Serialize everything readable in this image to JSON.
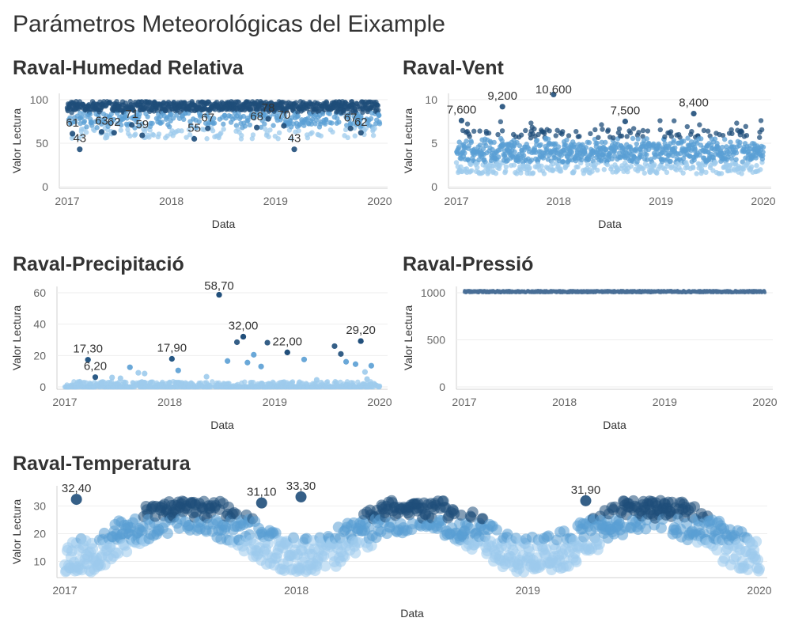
{
  "page": {
    "title": "Parámetros Meteorológicas del Eixample"
  },
  "colors": {
    "light": "#9dcbec",
    "mid": "#5a9fd4",
    "dark": "#1f4e7a",
    "pressure": "#4a6f97",
    "grid": "#eeeeee",
    "axis": "#d0d0d0"
  },
  "chart_data": [
    {
      "id": "humedad",
      "title": "Raval-Humedad Relativa",
      "type": "scatter",
      "xlabel": "Data",
      "ylabel": "Valor Lectura",
      "xlim": [
        2017.0,
        2020.0
      ],
      "ylim": [
        0,
        100
      ],
      "xticks": [
        "2017",
        "2018",
        "2019",
        "2020"
      ],
      "yticks": [
        0,
        50,
        100
      ],
      "gen": {
        "kind": "humidity",
        "n": 1050,
        "seed": 11
      },
      "labels": [
        {
          "x": 2017.05,
          "y": 61,
          "text": "61"
        },
        {
          "x": 2017.12,
          "y": 43,
          "text": "43"
        },
        {
          "x": 2017.33,
          "y": 63,
          "text": "63"
        },
        {
          "x": 2017.45,
          "y": 62,
          "text": "62"
        },
        {
          "x": 2017.62,
          "y": 71,
          "text": "71"
        },
        {
          "x": 2017.72,
          "y": 59,
          "text": "59"
        },
        {
          "x": 2018.22,
          "y": 55,
          "text": "55"
        },
        {
          "x": 2018.35,
          "y": 67,
          "text": "67"
        },
        {
          "x": 2018.82,
          "y": 68,
          "text": "68"
        },
        {
          "x": 2018.93,
          "y": 78,
          "text": "78"
        },
        {
          "x": 2019.08,
          "y": 70,
          "text": "70"
        },
        {
          "x": 2019.18,
          "y": 43,
          "text": "43"
        },
        {
          "x": 2019.72,
          "y": 67,
          "text": "67"
        },
        {
          "x": 2019.82,
          "y": 62,
          "text": "62"
        }
      ]
    },
    {
      "id": "vent",
      "title": "Raval-Vent",
      "type": "scatter",
      "xlabel": "Data",
      "ylabel": "Valor Lectura",
      "xlim": [
        2017.0,
        2020.0
      ],
      "ylim": [
        0,
        10
      ],
      "xticks": [
        "2017",
        "2018",
        "2019",
        "2020"
      ],
      "yticks": [
        0,
        5,
        10
      ],
      "gen": {
        "kind": "wind",
        "n": 1050,
        "seed": 23
      },
      "labels": [
        {
          "x": 2017.05,
          "y": 7.6,
          "text": "7,600"
        },
        {
          "x": 2017.45,
          "y": 9.2,
          "text": "9,200"
        },
        {
          "x": 2017.95,
          "y": 10.6,
          "text": "10,600"
        },
        {
          "x": 2018.65,
          "y": 7.5,
          "text": "7,500"
        },
        {
          "x": 2019.32,
          "y": 8.4,
          "text": "8,400"
        }
      ]
    },
    {
      "id": "precip",
      "title": "Raval-Precipitació",
      "type": "scatter",
      "xlabel": "Data",
      "ylabel": "Valor Lectura",
      "xlim": [
        2017.0,
        2020.0
      ],
      "ylim": [
        0,
        60
      ],
      "xticks": [
        "2017",
        "2018",
        "2019",
        "2020"
      ],
      "yticks": [
        0,
        20,
        40,
        60
      ],
      "gen": {
        "kind": "precip",
        "n": 1050,
        "seed": 37
      },
      "points": [
        {
          "x": 2017.22,
          "y": 17.3
        },
        {
          "x": 2017.29,
          "y": 6.2
        },
        {
          "x": 2017.35,
          "y": 3.0
        },
        {
          "x": 2017.45,
          "y": 6.0
        },
        {
          "x": 2017.53,
          "y": 5.5
        },
        {
          "x": 2017.62,
          "y": 12.5
        },
        {
          "x": 2017.7,
          "y": 9.0
        },
        {
          "x": 2017.76,
          "y": 8.5
        },
        {
          "x": 2018.02,
          "y": 17.9
        },
        {
          "x": 2018.08,
          "y": 10.5
        },
        {
          "x": 2018.35,
          "y": 6.5
        },
        {
          "x": 2018.47,
          "y": 58.7
        },
        {
          "x": 2018.55,
          "y": 16.5
        },
        {
          "x": 2018.64,
          "y": 28.5
        },
        {
          "x": 2018.7,
          "y": 32.0
        },
        {
          "x": 2018.74,
          "y": 15.5
        },
        {
          "x": 2018.8,
          "y": 20.5
        },
        {
          "x": 2018.87,
          "y": 13.0
        },
        {
          "x": 2018.93,
          "y": 28.2
        },
        {
          "x": 2019.12,
          "y": 22.0
        },
        {
          "x": 2019.28,
          "y": 17.5
        },
        {
          "x": 2019.4,
          "y": 4.5
        },
        {
          "x": 2019.57,
          "y": 26.0
        },
        {
          "x": 2019.63,
          "y": 21.0
        },
        {
          "x": 2019.68,
          "y": 16.0
        },
        {
          "x": 2019.77,
          "y": 14.5
        },
        {
          "x": 2019.82,
          "y": 29.2
        },
        {
          "x": 2019.86,
          "y": 9.5
        },
        {
          "x": 2019.92,
          "y": 13.5
        },
        {
          "x": 2019.88,
          "y": 5.0
        }
      ],
      "labels": [
        {
          "x": 2017.22,
          "y": 17.3,
          "text": "17,30"
        },
        {
          "x": 2017.29,
          "y": 6.2,
          "text": "6,20"
        },
        {
          "x": 2018.02,
          "y": 17.9,
          "text": "17,90"
        },
        {
          "x": 2018.47,
          "y": 58.7,
          "text": "58,70"
        },
        {
          "x": 2018.7,
          "y": 32.0,
          "text": "32,00"
        },
        {
          "x": 2019.12,
          "y": 22.0,
          "text": "22,00"
        },
        {
          "x": 2019.82,
          "y": 29.2,
          "text": "29,20"
        }
      ]
    },
    {
      "id": "pressio",
      "title": "Raval-Pressió",
      "type": "scatter",
      "xlabel": "Data",
      "ylabel": "Valor Lectura",
      "xlim": [
        2017.0,
        2020.0
      ],
      "ylim": [
        0,
        1000
      ],
      "xticks": [
        "2017",
        "2018",
        "2019",
        "2020"
      ],
      "yticks": [
        0,
        500,
        1000
      ],
      "gen": {
        "kind": "pressure",
        "n": 1050,
        "seed": 41
      },
      "labels": []
    },
    {
      "id": "temp",
      "title": "Raval-Temperatura",
      "type": "scatter",
      "xlabel": "Data",
      "ylabel": "Valor Lectura",
      "xlim": [
        2017.0,
        2020.0
      ],
      "ylim": [
        5,
        35
      ],
      "xticks": [
        "2017",
        "2018",
        "2019",
        "2020"
      ],
      "yticks": [
        10,
        20,
        30
      ],
      "gen": {
        "kind": "temperature",
        "n": 900,
        "seed": 53
      },
      "labels": [
        {
          "x": 2017.05,
          "y": 32.4,
          "text": "32,40"
        },
        {
          "x": 2017.85,
          "y": 31.1,
          "text": "31,10"
        },
        {
          "x": 2018.02,
          "y": 33.3,
          "text": "33,30"
        },
        {
          "x": 2019.25,
          "y": 31.9,
          "text": "31,90"
        }
      ]
    }
  ]
}
